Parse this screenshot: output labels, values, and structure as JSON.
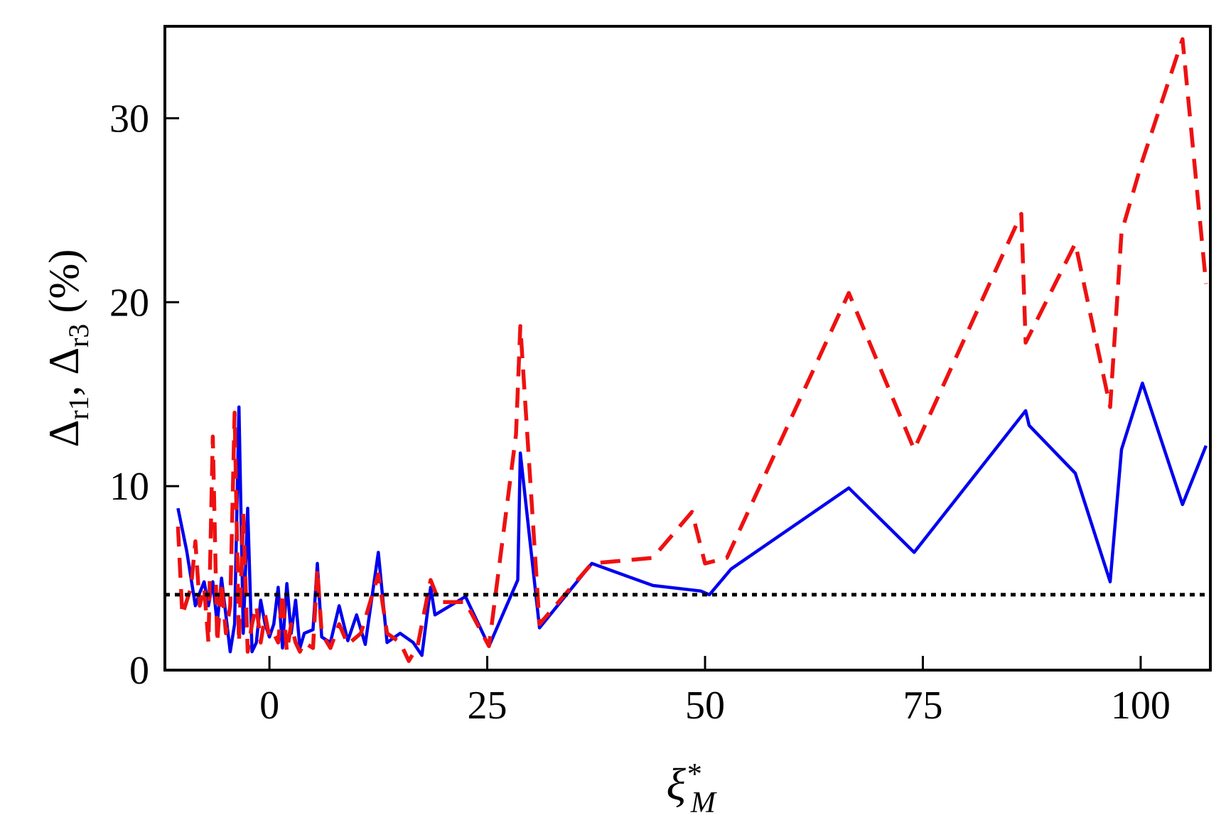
{
  "chart_data": {
    "type": "line",
    "title": "",
    "xlabel": {
      "base": "ξ",
      "sup": "*",
      "sub": "M"
    },
    "ylabel": {
      "parts": [
        "Δ",
        "r1",
        ", Δ",
        "r3",
        " (%)"
      ]
    },
    "xlim": [
      -12,
      108
    ],
    "ylim": [
      0,
      35
    ],
    "xticks": [
      0,
      25,
      50,
      75,
      100
    ],
    "yticks": [
      0,
      10,
      20,
      30
    ],
    "grid": false,
    "legend": "none",
    "reference_line": {
      "y": 4.1,
      "style": "dotted",
      "color": "#000000"
    },
    "series": [
      {
        "color": "#0000ee",
        "style": "solid",
        "x": [
          -10.5,
          -9.5,
          -8.5,
          -8,
          -7.5,
          -7,
          -6.5,
          -6,
          -5.5,
          -5,
          -4.5,
          -4,
          -3.5,
          -3,
          -2.5,
          -2,
          -1.5,
          -1,
          -0.5,
          0,
          0.5,
          1,
          1.5,
          2,
          2.5,
          3,
          3.5,
          4,
          5,
          5.5,
          6,
          7,
          8,
          9,
          10,
          11,
          12.5,
          13.5,
          15,
          16.5,
          17.5,
          18.5,
          19,
          22.5,
          25.2,
          28.5,
          28.8,
          31,
          37,
          44,
          49.5,
          50.5,
          53,
          66.5,
          74,
          86.8,
          87.2,
          92.5,
          96.5,
          97.8,
          100.2,
          104.8,
          107.5
        ],
        "y": [
          8.8,
          6.5,
          3.5,
          4.2,
          4.8,
          3.5,
          4.8,
          2.5,
          5,
          3,
          1,
          2.5,
          14.3,
          2,
          8.8,
          1,
          1.5,
          3.8,
          2.5,
          1.8,
          2.5,
          4.5,
          1.2,
          4.7,
          2,
          3.8,
          1.2,
          2,
          2.2,
          5.8,
          1.8,
          1.5,
          3.5,
          1.6,
          3,
          1.4,
          6.4,
          1.5,
          2,
          1.5,
          0.8,
          4.5,
          3,
          4,
          1.3,
          4.9,
          11.8,
          2.3,
          5.8,
          4.6,
          4.3,
          4.1,
          5.5,
          9.9,
          6.4,
          14.1,
          13.3,
          10.7,
          4.8,
          12,
          15.6,
          9,
          12.2
        ]
      },
      {
        "color": "#ee1111",
        "style": "dashed",
        "x": [
          -10.5,
          -10,
          -9,
          -8.5,
          -8,
          -7.5,
          -7,
          -6.5,
          -6,
          -5.5,
          -5,
          -4.5,
          -4,
          -3.5,
          -3,
          -2.5,
          -2,
          -1.5,
          -1,
          -0.5,
          0,
          0.5,
          1,
          1.5,
          2,
          2.5,
          3,
          3.5,
          4,
          5,
          5.5,
          6,
          7,
          8,
          9,
          10.5,
          12.5,
          13.5,
          15,
          16,
          17,
          18.5,
          19.5,
          22.5,
          25.2,
          28.3,
          28.8,
          31,
          37,
          44,
          48.5,
          50,
          52.5,
          66.5,
          74,
          86.3,
          86.8,
          92.5,
          96.5,
          97.8,
          100.2,
          104.8,
          107.5
        ],
        "y": [
          7.8,
          3,
          4.5,
          7,
          3.5,
          4.5,
          1.5,
          12.7,
          1.5,
          4.8,
          2,
          3.5,
          14,
          1.5,
          8.5,
          1,
          2.5,
          3.5,
          1.5,
          3,
          1.8,
          2,
          1.5,
          4.2,
          1,
          2.5,
          1.5,
          1,
          1.5,
          1.2,
          5.5,
          2,
          1.2,
          2.5,
          1.4,
          2,
          5.2,
          2,
          1.5,
          0.5,
          1.3,
          4.9,
          3.7,
          3.7,
          1.3,
          12.8,
          18.7,
          2.5,
          5.8,
          6.1,
          8.6,
          5.8,
          6.1,
          20.5,
          12,
          24.8,
          17.8,
          23.2,
          14.3,
          23.8,
          27.7,
          34.3,
          21
        ]
      }
    ]
  }
}
